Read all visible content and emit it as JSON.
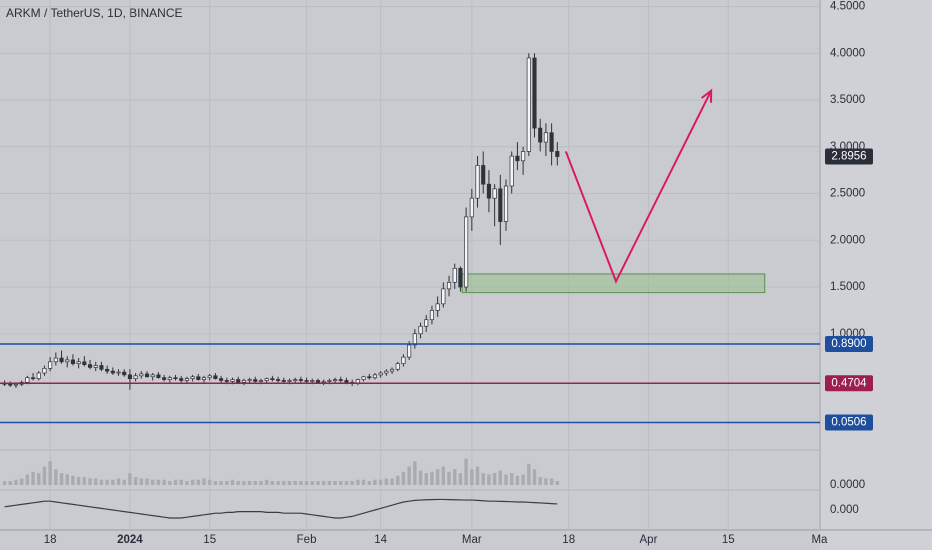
{
  "chart_data": {
    "type": "candlestick",
    "title": "ARKM / TetherUS, 1D, BINANCE",
    "xlim": [
      -8.8,
      135.1
    ],
    "xticks": [
      {
        "value": 0,
        "label": "18"
      },
      {
        "value": 14,
        "label": "2024"
      },
      {
        "value": 28,
        "label": "15"
      },
      {
        "value": 45,
        "label": "Feb"
      },
      {
        "value": 58,
        "label": "14"
      },
      {
        "value": 74,
        "label": "Mar"
      },
      {
        "value": 91,
        "label": "18"
      },
      {
        "value": 105,
        "label": "Apr"
      },
      {
        "value": 119,
        "label": "15"
      },
      {
        "value": 135,
        "label": "Ma"
      }
    ],
    "ylim": [
      -0.19,
      4.57
    ],
    "yticks": [
      {
        "value": 1,
        "label": "1.0000"
      },
      {
        "value": 1.5,
        "label": "1.5000"
      },
      {
        "value": 2,
        "label": "2.0000"
      },
      {
        "value": 2.5,
        "label": "2.5000"
      },
      {
        "value": 3,
        "label": "3.0000"
      },
      {
        "value": 3.5,
        "label": "3.5000"
      },
      {
        "value": 4,
        "label": "4.0000"
      },
      {
        "value": 4.5,
        "label": "4.5000"
      }
    ],
    "grid": true,
    "up_color": "#f4f5f7",
    "down_color": "#2f323a",
    "x": [
      -8,
      -7,
      -6,
      -5,
      -4,
      -3,
      -2,
      -1,
      0,
      1,
      2,
      3,
      4,
      5,
      6,
      7,
      8,
      9,
      10,
      11,
      12,
      13,
      14,
      15,
      16,
      17,
      18,
      19,
      20,
      21,
      22,
      23,
      24,
      25,
      26,
      27,
      28,
      29,
      30,
      31,
      32,
      33,
      34,
      35,
      36,
      37,
      38,
      39,
      40,
      41,
      42,
      43,
      44,
      45,
      46,
      47,
      48,
      49,
      50,
      51,
      52,
      53,
      54,
      55,
      56,
      57,
      58,
      59,
      60,
      61,
      62,
      63,
      64,
      65,
      66,
      67,
      68,
      69,
      70,
      71,
      72,
      73,
      74,
      75,
      76,
      77,
      78,
      79,
      80,
      81,
      82,
      83,
      84,
      85,
      86,
      87,
      88,
      89
    ],
    "candles": [
      [
        0.47,
        0.5,
        0.44,
        0.46
      ],
      [
        0.46,
        0.49,
        0.43,
        0.45
      ],
      [
        0.45,
        0.48,
        0.42,
        0.46
      ],
      [
        0.46,
        0.5,
        0.44,
        0.48
      ],
      [
        0.48,
        0.55,
        0.46,
        0.53
      ],
      [
        0.53,
        0.58,
        0.5,
        0.52
      ],
      [
        0.52,
        0.6,
        0.5,
        0.58
      ],
      [
        0.58,
        0.66,
        0.55,
        0.63
      ],
      [
        0.63,
        0.75,
        0.6,
        0.7
      ],
      [
        0.7,
        0.8,
        0.66,
        0.74
      ],
      [
        0.74,
        0.82,
        0.68,
        0.7
      ],
      [
        0.7,
        0.76,
        0.64,
        0.72
      ],
      [
        0.72,
        0.78,
        0.66,
        0.68
      ],
      [
        0.68,
        0.74,
        0.63,
        0.7
      ],
      [
        0.7,
        0.76,
        0.65,
        0.67
      ],
      [
        0.67,
        0.72,
        0.62,
        0.64
      ],
      [
        0.64,
        0.7,
        0.6,
        0.66
      ],
      [
        0.66,
        0.7,
        0.6,
        0.62
      ],
      [
        0.62,
        0.66,
        0.57,
        0.6
      ],
      [
        0.6,
        0.64,
        0.56,
        0.58
      ],
      [
        0.58,
        0.62,
        0.55,
        0.59
      ],
      [
        0.59,
        0.62,
        0.54,
        0.56
      ],
      [
        0.56,
        0.62,
        0.4,
        0.52
      ],
      [
        0.52,
        0.58,
        0.49,
        0.55
      ],
      [
        0.55,
        0.6,
        0.52,
        0.57
      ],
      [
        0.57,
        0.6,
        0.53,
        0.54
      ],
      [
        0.54,
        0.58,
        0.5,
        0.56
      ],
      [
        0.56,
        0.59,
        0.52,
        0.53
      ],
      [
        0.53,
        0.56,
        0.49,
        0.51
      ],
      [
        0.51,
        0.55,
        0.48,
        0.53
      ],
      [
        0.53,
        0.56,
        0.5,
        0.52
      ],
      [
        0.52,
        0.55,
        0.48,
        0.5
      ],
      [
        0.5,
        0.54,
        0.47,
        0.52
      ],
      [
        0.52,
        0.56,
        0.49,
        0.54
      ],
      [
        0.54,
        0.57,
        0.5,
        0.51
      ],
      [
        0.51,
        0.55,
        0.48,
        0.53
      ],
      [
        0.53,
        0.57,
        0.5,
        0.55
      ],
      [
        0.55,
        0.58,
        0.51,
        0.52
      ],
      [
        0.52,
        0.55,
        0.48,
        0.5
      ],
      [
        0.5,
        0.53,
        0.46,
        0.49
      ],
      [
        0.49,
        0.53,
        0.46,
        0.51
      ],
      [
        0.51,
        0.54,
        0.47,
        0.48
      ],
      [
        0.48,
        0.52,
        0.45,
        0.5
      ],
      [
        0.5,
        0.53,
        0.47,
        0.51
      ],
      [
        0.51,
        0.54,
        0.48,
        0.49
      ],
      [
        0.49,
        0.52,
        0.46,
        0.5
      ],
      [
        0.5,
        0.53,
        0.47,
        0.52
      ],
      [
        0.52,
        0.55,
        0.49,
        0.51
      ],
      [
        0.51,
        0.54,
        0.48,
        0.5
      ],
      [
        0.5,
        0.53,
        0.47,
        0.49
      ],
      [
        0.49,
        0.52,
        0.46,
        0.5
      ],
      [
        0.5,
        0.53,
        0.47,
        0.51
      ],
      [
        0.51,
        0.54,
        0.48,
        0.5
      ],
      [
        0.5,
        0.53,
        0.47,
        0.49
      ],
      [
        0.49,
        0.52,
        0.46,
        0.5
      ],
      [
        0.5,
        0.52,
        0.47,
        0.48
      ],
      [
        0.48,
        0.51,
        0.45,
        0.49
      ],
      [
        0.49,
        0.52,
        0.46,
        0.5
      ],
      [
        0.5,
        0.53,
        0.47,
        0.51
      ],
      [
        0.51,
        0.54,
        0.48,
        0.5
      ],
      [
        0.5,
        0.53,
        0.46,
        0.48
      ],
      [
        0.48,
        0.51,
        0.44,
        0.47
      ],
      [
        0.47,
        0.52,
        0.45,
        0.51
      ],
      [
        0.51,
        0.55,
        0.49,
        0.54
      ],
      [
        0.54,
        0.57,
        0.51,
        0.53
      ],
      [
        0.53,
        0.58,
        0.51,
        0.56
      ],
      [
        0.56,
        0.6,
        0.53,
        0.58
      ],
      [
        0.58,
        0.62,
        0.55,
        0.6
      ],
      [
        0.6,
        0.64,
        0.57,
        0.62
      ],
      [
        0.62,
        0.7,
        0.6,
        0.68
      ],
      [
        0.68,
        0.78,
        0.65,
        0.75
      ],
      [
        0.75,
        0.92,
        0.72,
        0.88
      ],
      [
        0.88,
        1.05,
        0.84,
        1.0
      ],
      [
        1.0,
        1.12,
        0.95,
        1.08
      ],
      [
        1.08,
        1.2,
        1.02,
        1.15
      ],
      [
        1.15,
        1.3,
        1.1,
        1.25
      ],
      [
        1.25,
        1.4,
        1.18,
        1.32
      ],
      [
        1.32,
        1.55,
        1.28,
        1.48
      ],
      [
        1.48,
        1.62,
        1.4,
        1.55
      ],
      [
        1.55,
        1.75,
        1.48,
        1.7
      ],
      [
        1.7,
        1.72,
        1.45,
        1.5
      ],
      [
        1.5,
        2.35,
        1.45,
        2.25
      ],
      [
        2.25,
        2.55,
        2.1,
        2.45
      ],
      [
        2.45,
        2.9,
        2.35,
        2.8
      ],
      [
        2.8,
        2.95,
        2.5,
        2.6
      ],
      [
        2.6,
        2.75,
        2.3,
        2.45
      ],
      [
        2.45,
        2.6,
        2.15,
        2.55
      ],
      [
        2.55,
        2.7,
        1.95,
        2.2
      ],
      [
        2.2,
        2.65,
        2.1,
        2.58
      ],
      [
        2.58,
        2.95,
        2.5,
        2.9
      ],
      [
        2.9,
        3.05,
        2.75,
        2.85
      ],
      [
        2.85,
        3.0,
        2.7,
        2.95
      ],
      [
        2.95,
        4.0,
        2.9,
        3.95
      ],
      [
        3.95,
        4.0,
        3.1,
        3.2
      ],
      [
        3.2,
        3.3,
        2.95,
        3.05
      ],
      [
        3.05,
        3.25,
        2.9,
        3.15
      ],
      [
        3.15,
        3.25,
        2.8,
        2.95
      ],
      [
        2.95,
        3.05,
        2.8,
        2.8956
      ]
    ],
    "last_price": {
      "value": 2.8956,
      "label": "2.8956",
      "color": "#2a2e39"
    },
    "levels": [
      {
        "value": 0.89,
        "label": "0.8900",
        "color": "#1f4e9c"
      },
      {
        "value": 0.4704,
        "label": "0.4704",
        "color": "#9c1f4e"
      },
      {
        "value": 0.0506,
        "label": "0.0506",
        "color": "#1f4e9c"
      }
    ],
    "annotations": {
      "zone": {
        "x": [
          72.3,
          125.4
        ],
        "y": [
          1.44,
          1.64
        ],
        "color": "#8fbf7f"
      },
      "path": {
        "x": [
          90.5,
          99.3,
          116.0
        ],
        "y": [
          2.95,
          1.56,
          3.6
        ],
        "color": "#d81b60"
      }
    },
    "volume": {
      "values": [
        3,
        3,
        4,
        5,
        8,
        10,
        9,
        14,
        18,
        12,
        9,
        8,
        7,
        6,
        6,
        5,
        5,
        4,
        4,
        4,
        5,
        4,
        9,
        6,
        5,
        5,
        4,
        4,
        4,
        3,
        4,
        4,
        3,
        4,
        4,
        5,
        4,
        3,
        3,
        3,
        4,
        3,
        3,
        3,
        3,
        3,
        4,
        3,
        3,
        3,
        3,
        3,
        3,
        3,
        3,
        3,
        3,
        3,
        3,
        3,
        3,
        3,
        4,
        4,
        3,
        4,
        4,
        5,
        5,
        7,
        10,
        14,
        18,
        11,
        9,
        10,
        12,
        14,
        10,
        12,
        9,
        20,
        12,
        14,
        9,
        8,
        9,
        11,
        8,
        9,
        7,
        8,
        16,
        12,
        6,
        5,
        5,
        3
      ],
      "ylim": [
        0,
        25
      ],
      "yticks": [
        {
          "value": 0,
          "label": "0.0000"
        }
      ],
      "color": "#a9abb2"
    },
    "oscillator": {
      "values": [
        0.2,
        0.25,
        0.3,
        0.35,
        0.4,
        0.45,
        0.5,
        0.55,
        0.55,
        0.5,
        0.45,
        0.4,
        0.35,
        0.3,
        0.25,
        0.2,
        0.15,
        0.1,
        0.05,
        0,
        -0.05,
        -0.1,
        -0.15,
        -0.2,
        -0.25,
        -0.3,
        -0.35,
        -0.4,
        -0.45,
        -0.5,
        -0.5,
        -0.5,
        -0.45,
        -0.4,
        -0.35,
        -0.3,
        -0.25,
        -0.2,
        -0.2,
        -0.15,
        -0.15,
        -0.1,
        -0.1,
        -0.1,
        -0.1,
        -0.1,
        -0.15,
        -0.15,
        -0.15,
        -0.2,
        -0.2,
        -0.2,
        -0.2,
        -0.25,
        -0.3,
        -0.35,
        -0.4,
        -0.45,
        -0.5,
        -0.5,
        -0.45,
        -0.4,
        -0.3,
        -0.2,
        -0.1,
        0,
        0.1,
        0.2,
        0.3,
        0.4,
        0.5,
        0.55,
        0.6,
        0.62,
        0.64,
        0.65,
        0.66,
        0.66,
        0.65,
        0.64,
        0.63,
        0.62,
        0.62,
        0.6,
        0.58,
        0.55,
        0.55,
        0.54,
        0.53,
        0.52,
        0.5,
        0.5,
        0.48,
        0.46,
        0.44,
        0.42,
        0.4,
        0.38
      ],
      "ylim": [
        -1,
        1
      ],
      "yticks": [
        {
          "value": 0,
          "label": "0.000"
        }
      ],
      "color": "#3a3d45"
    }
  }
}
